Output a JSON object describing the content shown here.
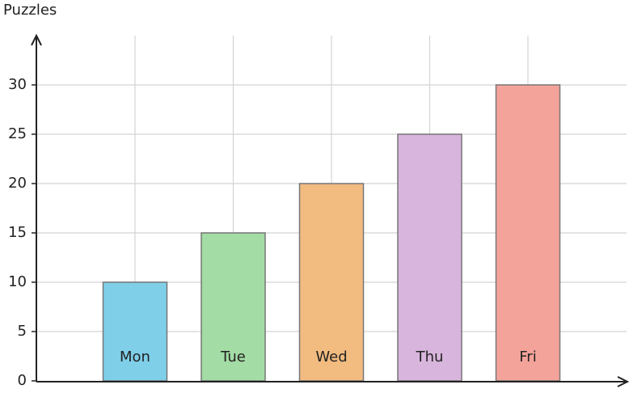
{
  "chart_data": {
    "type": "bar",
    "y_label": "Puzzles",
    "categories": [
      "Mon",
      "Tue",
      "Wed",
      "Thu",
      "Fri"
    ],
    "values": [
      10,
      15,
      20,
      25,
      30
    ],
    "colors": [
      "#7fcfe9",
      "#a3dca5",
      "#f2bb80",
      "#d8b5dc",
      "#f4a39a"
    ],
    "ylim": [
      0,
      35
    ],
    "yticks": [
      0,
      5,
      10,
      15,
      20,
      25,
      30
    ],
    "grid": true
  }
}
